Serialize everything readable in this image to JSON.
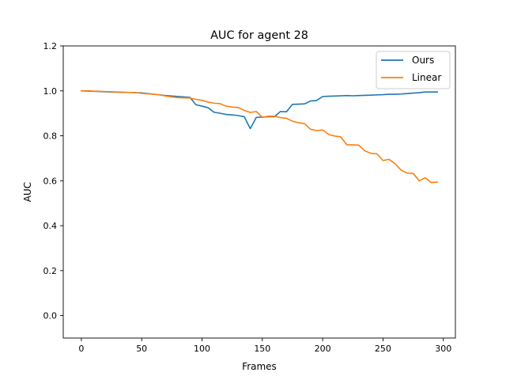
{
  "chart_data": {
    "type": "line",
    "title": "AUC for agent 28",
    "xlabel": "Frames",
    "ylabel": "AUC",
    "xlim": [
      -15,
      310
    ],
    "ylim": [
      -0.1,
      1.2
    ],
    "xticks": [
      0,
      50,
      100,
      150,
      200,
      250,
      300
    ],
    "yticks": [
      0.0,
      0.2,
      0.4,
      0.6,
      0.8,
      1.0,
      1.2
    ],
    "xtick_labels": [
      "0",
      "50",
      "100",
      "150",
      "200",
      "250",
      "300"
    ],
    "ytick_labels": [
      "0.0",
      "0.2",
      "0.4",
      "0.6",
      "0.8",
      "1.0",
      "1.2"
    ],
    "grid": false,
    "legend_position": "top-right",
    "x": [
      0,
      5,
      10,
      15,
      20,
      25,
      30,
      35,
      40,
      45,
      50,
      55,
      60,
      65,
      70,
      75,
      80,
      85,
      90,
      95,
      100,
      105,
      110,
      115,
      120,
      125,
      130,
      135,
      140,
      145,
      150,
      155,
      160,
      165,
      170,
      175,
      180,
      185,
      190,
      195,
      200,
      205,
      210,
      215,
      220,
      225,
      230,
      235,
      240,
      245,
      250,
      255,
      260,
      265,
      270,
      275,
      280,
      285,
      290,
      295
    ],
    "series": [
      {
        "name": "Ours",
        "color": "#1f77b4",
        "values": [
          1.0,
          0.999,
          0.998,
          0.997,
          0.996,
          0.995,
          0.994,
          0.993,
          0.993,
          0.992,
          0.991,
          0.988,
          0.985,
          0.982,
          0.979,
          0.977,
          0.975,
          0.973,
          0.971,
          0.938,
          0.932,
          0.925,
          0.905,
          0.9,
          0.895,
          0.893,
          0.89,
          0.885,
          0.832,
          0.882,
          0.883,
          0.885,
          0.885,
          0.908,
          0.907,
          0.94,
          0.941,
          0.942,
          0.955,
          0.957,
          0.975,
          0.976,
          0.977,
          0.978,
          0.979,
          0.978,
          0.979,
          0.98,
          0.981,
          0.982,
          0.983,
          0.985,
          0.985,
          0.986,
          0.988,
          0.99,
          0.992,
          0.995,
          0.995,
          0.995
        ]
      },
      {
        "name": "Linear",
        "color": "#ff7f0e",
        "values": [
          1.0,
          1.0,
          0.999,
          0.998,
          0.997,
          0.996,
          0.995,
          0.994,
          0.993,
          0.992,
          0.989,
          0.987,
          0.985,
          0.982,
          0.977,
          0.973,
          0.97,
          0.969,
          0.968,
          0.962,
          0.958,
          0.95,
          0.945,
          0.943,
          0.932,
          0.928,
          0.926,
          0.913,
          0.904,
          0.908,
          0.882,
          0.887,
          0.887,
          0.881,
          0.878,
          0.865,
          0.858,
          0.854,
          0.829,
          0.823,
          0.826,
          0.806,
          0.799,
          0.795,
          0.76,
          0.76,
          0.758,
          0.733,
          0.722,
          0.72,
          0.69,
          0.695,
          0.676,
          0.647,
          0.634,
          0.633,
          0.6,
          0.613,
          0.592,
          0.594
        ]
      }
    ]
  }
}
